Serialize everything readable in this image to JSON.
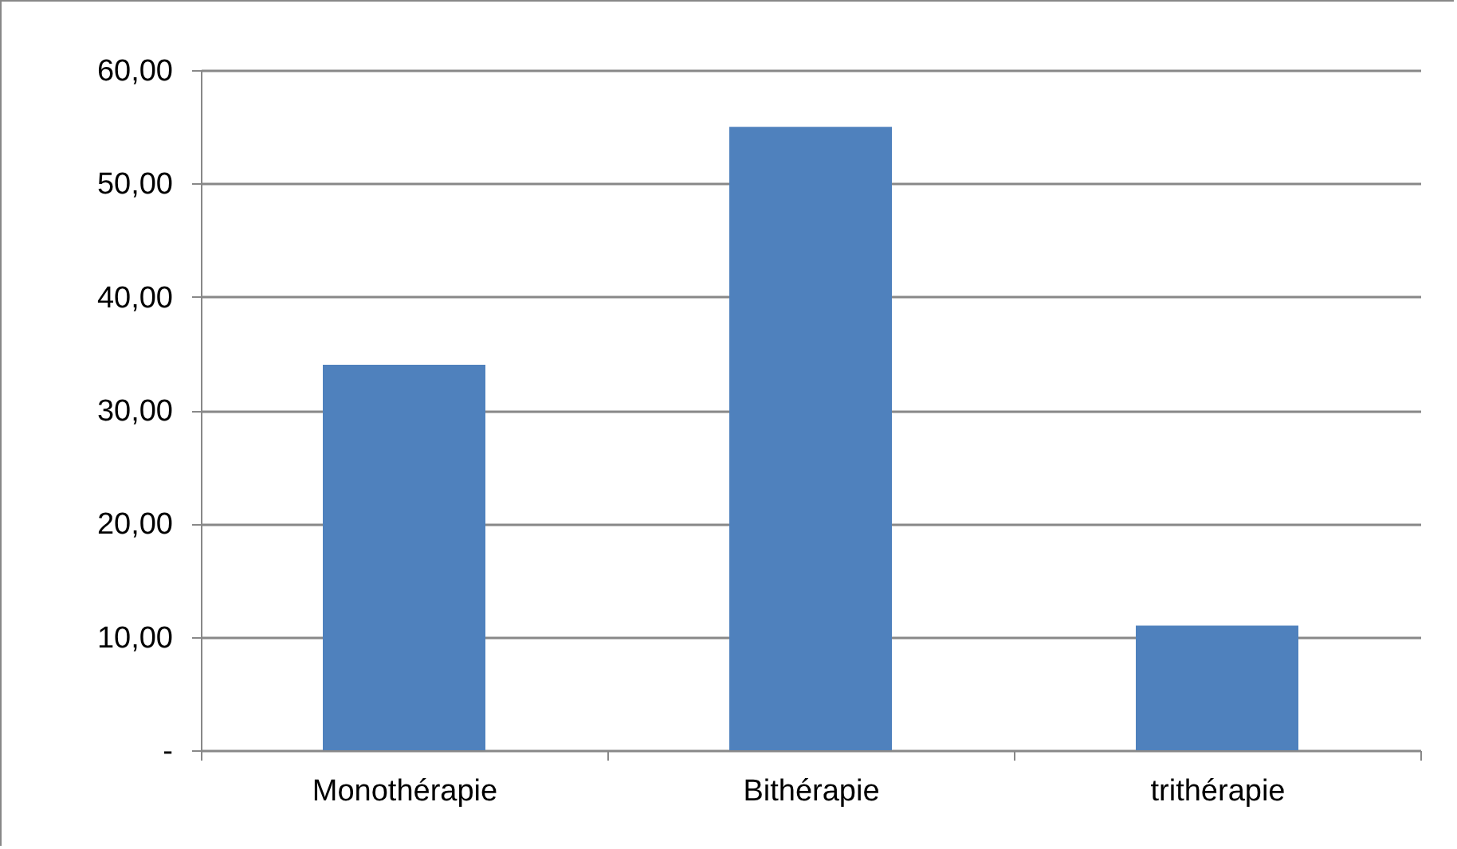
{
  "chart_data": {
    "type": "bar",
    "categories": [
      "Monothérapie",
      "Bithérapie",
      "trithérapie"
    ],
    "values": [
      34,
      55,
      11
    ],
    "color": "#4f81bd",
    "ylim": [
      0,
      60
    ],
    "yticks": [
      {
        "value": 0,
        "label": "-"
      },
      {
        "value": 10,
        "label": "10,00"
      },
      {
        "value": 20,
        "label": "20,00"
      },
      {
        "value": 30,
        "label": "30,00"
      },
      {
        "value": 40,
        "label": "40,00"
      },
      {
        "value": 50,
        "label": "50,00"
      },
      {
        "value": 60,
        "label": "60,00"
      }
    ],
    "grid": "y"
  }
}
